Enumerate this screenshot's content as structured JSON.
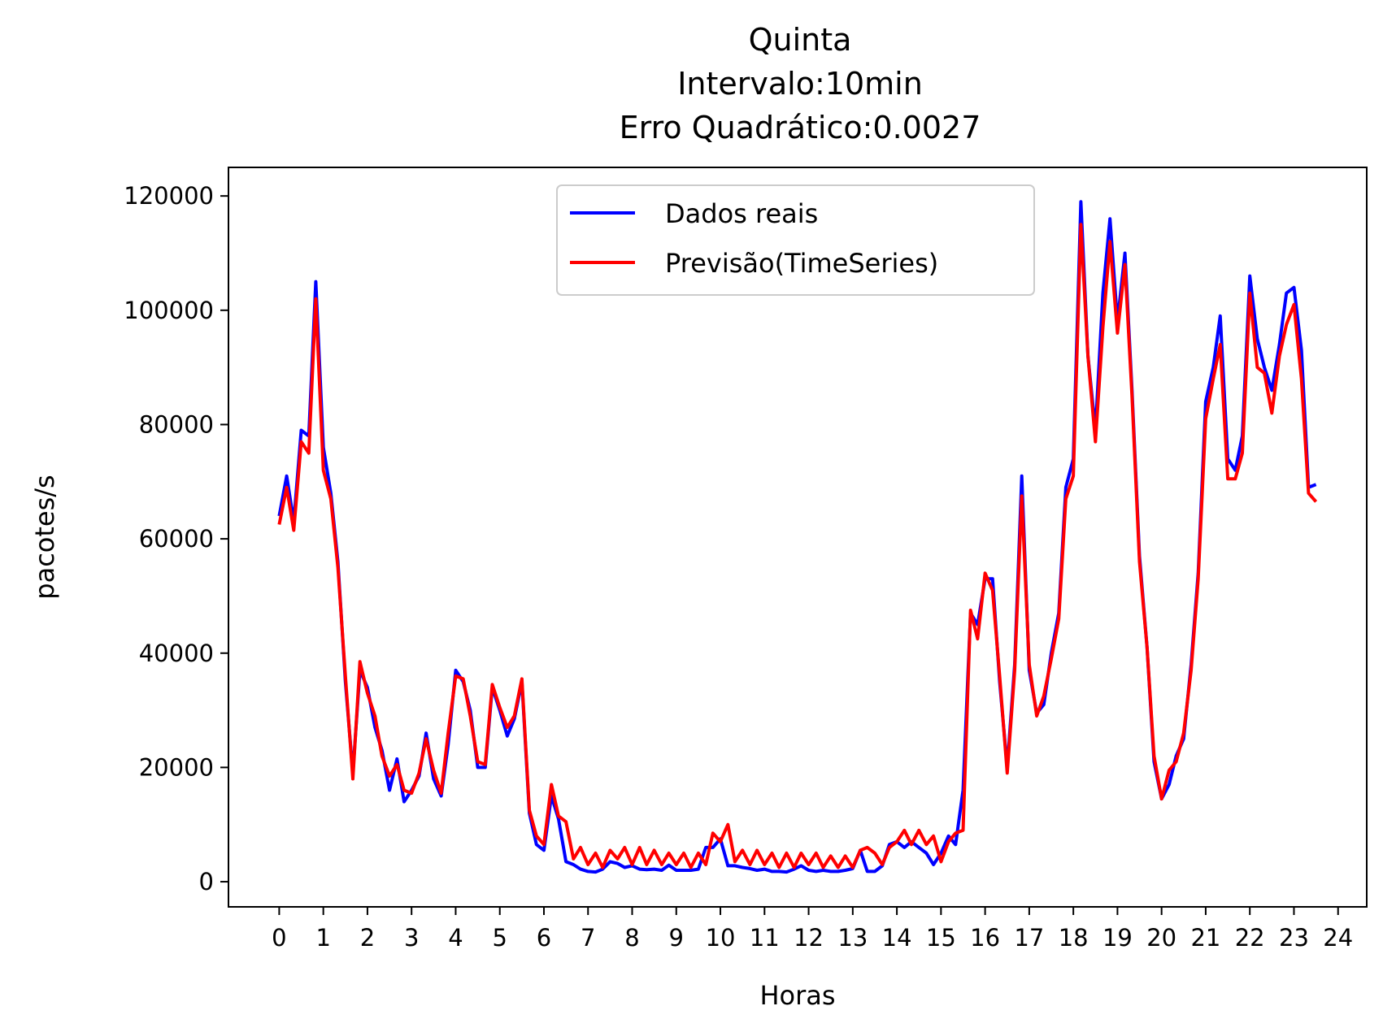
{
  "chart_data": {
    "type": "line",
    "title_lines": [
      "Quinta",
      "Intervalo:10min",
      "Erro Quadrático:0.0027"
    ],
    "xlabel": "Horas",
    "ylabel": "pacotes/s",
    "xlim": [
      -1.15,
      24.65
    ],
    "ylim": [
      -4400,
      125000
    ],
    "xticks": [
      0,
      1,
      2,
      3,
      4,
      5,
      6,
      7,
      8,
      9,
      10,
      11,
      12,
      13,
      14,
      15,
      16,
      17,
      18,
      19,
      20,
      21,
      22,
      23,
      24
    ],
    "xtick_labels": [
      "0",
      "1",
      "2",
      "3",
      "4",
      "5",
      "6",
      "7",
      "8",
      "9",
      "10",
      "11",
      "12",
      "13",
      "14",
      "15",
      "16",
      "17",
      "18",
      "19",
      "20",
      "21",
      "22",
      "23",
      "24"
    ],
    "yticks": [
      0,
      20000,
      40000,
      60000,
      80000,
      100000,
      120000
    ],
    "ytick_labels": [
      "0",
      "20000",
      "40000",
      "60000",
      "80000",
      "100000",
      "120000"
    ],
    "legend_position": "upper-center",
    "colors": {
      "real": "#0000ff",
      "forecast": "#ff0000"
    },
    "series": [
      {
        "name": "Dados reais",
        "color": "#0000ff",
        "points": [
          [
            0.0,
            64000
          ],
          [
            0.17,
            71000
          ],
          [
            0.33,
            63000
          ],
          [
            0.5,
            79000
          ],
          [
            0.67,
            78000
          ],
          [
            0.83,
            105000
          ],
          [
            1.0,
            76000
          ],
          [
            1.17,
            68000
          ],
          [
            1.33,
            56000
          ],
          [
            1.5,
            35000
          ],
          [
            1.67,
            19000
          ],
          [
            1.83,
            37000
          ],
          [
            2.0,
            34000
          ],
          [
            2.17,
            27000
          ],
          [
            2.33,
            23000
          ],
          [
            2.5,
            16000
          ],
          [
            2.67,
            21500
          ],
          [
            2.83,
            14000
          ],
          [
            3.0,
            16000
          ],
          [
            3.17,
            18500
          ],
          [
            3.33,
            26000
          ],
          [
            3.5,
            18000
          ],
          [
            3.67,
            15000
          ],
          [
            3.83,
            24000
          ],
          [
            4.0,
            37000
          ],
          [
            4.17,
            35000
          ],
          [
            4.33,
            30000
          ],
          [
            4.5,
            20000
          ],
          [
            4.67,
            20000
          ],
          [
            4.83,
            34000
          ],
          [
            5.0,
            30000
          ],
          [
            5.17,
            25500
          ],
          [
            5.33,
            28500
          ],
          [
            5.5,
            35000
          ],
          [
            5.67,
            12000
          ],
          [
            5.83,
            6500
          ],
          [
            6.0,
            5500
          ],
          [
            6.17,
            15000
          ],
          [
            6.33,
            11000
          ],
          [
            6.5,
            3500
          ],
          [
            6.67,
            3000
          ],
          [
            6.83,
            2200
          ],
          [
            7.0,
            1800
          ],
          [
            7.17,
            1700
          ],
          [
            7.33,
            2200
          ],
          [
            7.5,
            3500
          ],
          [
            7.67,
            3200
          ],
          [
            7.83,
            2500
          ],
          [
            8.0,
            2800
          ],
          [
            8.17,
            2200
          ],
          [
            8.33,
            2100
          ],
          [
            8.5,
            2200
          ],
          [
            8.67,
            2000
          ],
          [
            8.83,
            2900
          ],
          [
            9.0,
            2000
          ],
          [
            9.17,
            2000
          ],
          [
            9.33,
            2000
          ],
          [
            9.5,
            2200
          ],
          [
            9.67,
            6000
          ],
          [
            9.83,
            6000
          ],
          [
            10.0,
            7500
          ],
          [
            10.17,
            2800
          ],
          [
            10.33,
            2800
          ],
          [
            10.5,
            2500
          ],
          [
            10.67,
            2300
          ],
          [
            10.83,
            2000
          ],
          [
            11.0,
            2200
          ],
          [
            11.17,
            1800
          ],
          [
            11.33,
            1800
          ],
          [
            11.5,
            1700
          ],
          [
            11.67,
            2200
          ],
          [
            11.83,
            2800
          ],
          [
            12.0,
            2000
          ],
          [
            12.17,
            1800
          ],
          [
            12.33,
            2000
          ],
          [
            12.5,
            1800
          ],
          [
            12.67,
            1800
          ],
          [
            12.83,
            2000
          ],
          [
            13.0,
            2300
          ],
          [
            13.17,
            5500
          ],
          [
            13.33,
            1800
          ],
          [
            13.5,
            1800
          ],
          [
            13.67,
            2800
          ],
          [
            13.83,
            6500
          ],
          [
            14.0,
            7000
          ],
          [
            14.17,
            6000
          ],
          [
            14.33,
            7000
          ],
          [
            14.5,
            6000
          ],
          [
            14.67,
            5000
          ],
          [
            14.83,
            3000
          ],
          [
            15.0,
            5000
          ],
          [
            15.17,
            8000
          ],
          [
            15.33,
            6500
          ],
          [
            15.5,
            16000
          ],
          [
            15.67,
            47000
          ],
          [
            15.83,
            45000
          ],
          [
            16.0,
            53000
          ],
          [
            16.17,
            53000
          ],
          [
            16.33,
            35000
          ],
          [
            16.5,
            20000
          ],
          [
            16.67,
            38000
          ],
          [
            16.83,
            71000
          ],
          [
            17.0,
            37000
          ],
          [
            17.17,
            29500
          ],
          [
            17.33,
            31000
          ],
          [
            17.5,
            40000
          ],
          [
            17.67,
            47000
          ],
          [
            17.83,
            69000
          ],
          [
            18.0,
            74000
          ],
          [
            18.17,
            119000
          ],
          [
            18.33,
            92000
          ],
          [
            18.5,
            79000
          ],
          [
            18.67,
            103000
          ],
          [
            18.83,
            116000
          ],
          [
            19.0,
            98000
          ],
          [
            19.17,
            110000
          ],
          [
            19.33,
            86000
          ],
          [
            19.5,
            57000
          ],
          [
            19.67,
            41000
          ],
          [
            19.83,
            21000
          ],
          [
            20.0,
            14500
          ],
          [
            20.17,
            17000
          ],
          [
            20.33,
            22000
          ],
          [
            20.5,
            25000
          ],
          [
            20.67,
            38000
          ],
          [
            20.83,
            54000
          ],
          [
            21.0,
            84000
          ],
          [
            21.17,
            90000
          ],
          [
            21.33,
            99000
          ],
          [
            21.5,
            74000
          ],
          [
            21.67,
            72000
          ],
          [
            21.83,
            78000
          ],
          [
            22.0,
            106000
          ],
          [
            22.17,
            95000
          ],
          [
            22.33,
            90000
          ],
          [
            22.5,
            86000
          ],
          [
            22.67,
            94000
          ],
          [
            22.83,
            103000
          ],
          [
            23.0,
            104000
          ],
          [
            23.17,
            93000
          ],
          [
            23.33,
            69000
          ],
          [
            23.5,
            69500
          ]
        ]
      },
      {
        "name": "Previsão(TimeSeries)",
        "color": "#ff0000",
        "points": [
          [
            0.0,
            62500
          ],
          [
            0.17,
            69000
          ],
          [
            0.33,
            61500
          ],
          [
            0.5,
            77000
          ],
          [
            0.67,
            75000
          ],
          [
            0.83,
            102000
          ],
          [
            1.0,
            72000
          ],
          [
            1.17,
            67000
          ],
          [
            1.33,
            55000
          ],
          [
            1.5,
            36000
          ],
          [
            1.67,
            18000
          ],
          [
            1.83,
            38500
          ],
          [
            2.0,
            33000
          ],
          [
            2.17,
            29000
          ],
          [
            2.33,
            22000
          ],
          [
            2.5,
            18500
          ],
          [
            2.67,
            20500
          ],
          [
            2.83,
            16000
          ],
          [
            3.0,
            15500
          ],
          [
            3.17,
            19000
          ],
          [
            3.33,
            25000
          ],
          [
            3.5,
            19500
          ],
          [
            3.67,
            15500
          ],
          [
            3.83,
            26000
          ],
          [
            4.0,
            36000
          ],
          [
            4.17,
            35500
          ],
          [
            4.33,
            29000
          ],
          [
            4.5,
            21000
          ],
          [
            4.67,
            20500
          ],
          [
            4.83,
            34500
          ],
          [
            5.0,
            30500
          ],
          [
            5.17,
            27000
          ],
          [
            5.33,
            29000
          ],
          [
            5.5,
            35500
          ],
          [
            5.67,
            12500
          ],
          [
            5.83,
            8000
          ],
          [
            6.0,
            6500
          ],
          [
            6.17,
            17000
          ],
          [
            6.33,
            11500
          ],
          [
            6.5,
            10500
          ],
          [
            6.67,
            4000
          ],
          [
            6.83,
            6000
          ],
          [
            7.0,
            3000
          ],
          [
            7.17,
            5000
          ],
          [
            7.33,
            2500
          ],
          [
            7.5,
            5500
          ],
          [
            7.67,
            4000
          ],
          [
            7.83,
            6000
          ],
          [
            8.0,
            3000
          ],
          [
            8.17,
            6000
          ],
          [
            8.33,
            3000
          ],
          [
            8.5,
            5500
          ],
          [
            8.67,
            3000
          ],
          [
            8.83,
            5000
          ],
          [
            9.0,
            3000
          ],
          [
            9.17,
            5000
          ],
          [
            9.33,
            2500
          ],
          [
            9.5,
            5000
          ],
          [
            9.67,
            3000
          ],
          [
            9.83,
            8500
          ],
          [
            10.0,
            7000
          ],
          [
            10.17,
            10000
          ],
          [
            10.33,
            3500
          ],
          [
            10.5,
            5500
          ],
          [
            10.67,
            3000
          ],
          [
            10.83,
            5500
          ],
          [
            11.0,
            3000
          ],
          [
            11.17,
            5000
          ],
          [
            11.33,
            2500
          ],
          [
            11.5,
            5000
          ],
          [
            11.67,
            2500
          ],
          [
            11.83,
            5000
          ],
          [
            12.0,
            3000
          ],
          [
            12.17,
            5000
          ],
          [
            12.33,
            2500
          ],
          [
            12.5,
            4500
          ],
          [
            12.67,
            2500
          ],
          [
            12.83,
            4500
          ],
          [
            13.0,
            2500
          ],
          [
            13.17,
            5500
          ],
          [
            13.33,
            6000
          ],
          [
            13.5,
            5000
          ],
          [
            13.67,
            3000
          ],
          [
            13.83,
            6000
          ],
          [
            14.0,
            7000
          ],
          [
            14.17,
            9000
          ],
          [
            14.33,
            6500
          ],
          [
            14.5,
            9000
          ],
          [
            14.67,
            6500
          ],
          [
            14.83,
            8000
          ],
          [
            15.0,
            3500
          ],
          [
            15.17,
            7000
          ],
          [
            15.33,
            8500
          ],
          [
            15.5,
            9000
          ],
          [
            15.67,
            47500
          ],
          [
            15.83,
            42500
          ],
          [
            16.0,
            54000
          ],
          [
            16.17,
            51000
          ],
          [
            16.33,
            36000
          ],
          [
            16.5,
            19000
          ],
          [
            16.67,
            37000
          ],
          [
            16.83,
            67500
          ],
          [
            17.0,
            38000
          ],
          [
            17.17,
            29000
          ],
          [
            17.33,
            32500
          ],
          [
            17.5,
            39000
          ],
          [
            17.67,
            46000
          ],
          [
            17.83,
            67000
          ],
          [
            18.0,
            71000
          ],
          [
            18.17,
            115000
          ],
          [
            18.33,
            92000
          ],
          [
            18.5,
            77000
          ],
          [
            18.67,
            97000
          ],
          [
            18.83,
            112000
          ],
          [
            19.0,
            96000
          ],
          [
            19.17,
            108000
          ],
          [
            19.33,
            85000
          ],
          [
            19.5,
            56000
          ],
          [
            19.67,
            41000
          ],
          [
            19.83,
            22000
          ],
          [
            20.0,
            14500
          ],
          [
            20.17,
            19500
          ],
          [
            20.33,
            21000
          ],
          [
            20.5,
            26000
          ],
          [
            20.67,
            37000
          ],
          [
            20.83,
            53000
          ],
          [
            21.0,
            81000
          ],
          [
            21.17,
            88000
          ],
          [
            21.33,
            94000
          ],
          [
            21.5,
            70500
          ],
          [
            21.67,
            70500
          ],
          [
            21.83,
            75000
          ],
          [
            22.0,
            103000
          ],
          [
            22.17,
            90000
          ],
          [
            22.33,
            89000
          ],
          [
            22.5,
            82000
          ],
          [
            22.67,
            92000
          ],
          [
            22.83,
            97500
          ],
          [
            23.0,
            101000
          ],
          [
            23.17,
            88000
          ],
          [
            23.33,
            68000
          ],
          [
            23.5,
            66500
          ]
        ]
      }
    ]
  }
}
